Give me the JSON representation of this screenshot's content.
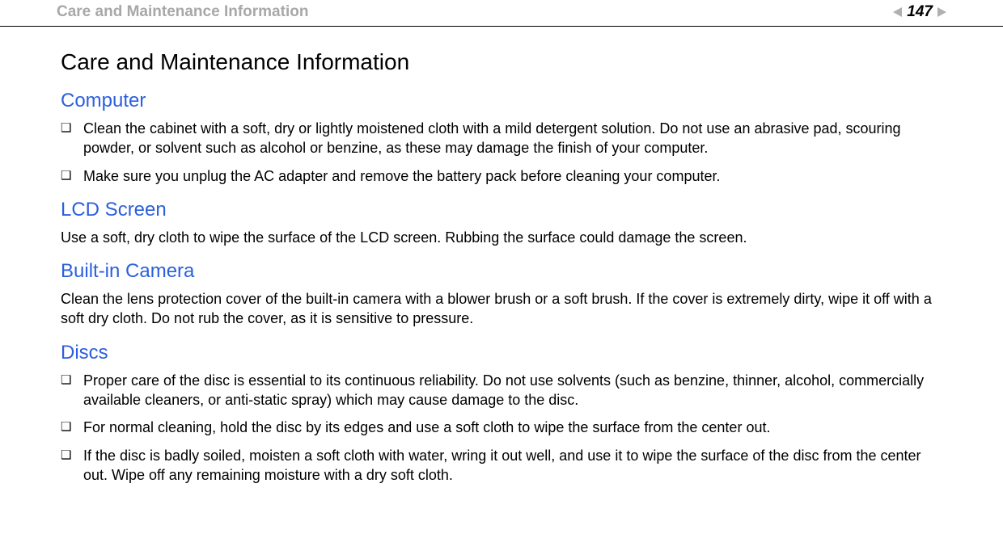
{
  "header": {
    "breadcrumb": "Care and Maintenance Information",
    "page_number": "147"
  },
  "main_title": "Care and Maintenance Information",
  "sections": {
    "computer": {
      "heading": "Computer",
      "items": [
        "Clean the cabinet with a soft, dry or lightly moistened cloth with a mild detergent solution. Do not use an abrasive pad, scouring powder, or solvent such as alcohol or benzine, as these may damage the finish of your computer.",
        "Make sure you unplug the AC adapter and remove the battery pack before cleaning your computer."
      ]
    },
    "lcd": {
      "heading": "LCD Screen",
      "body": "Use a soft, dry cloth to wipe the surface of the LCD screen. Rubbing the surface could damage the screen."
    },
    "camera": {
      "heading": "Built-in Camera",
      "body": "Clean the lens protection cover of the built-in camera with a blower brush or a soft brush. If the cover is extremely dirty, wipe it off with a soft dry cloth. Do not rub the cover, as it is sensitive to pressure."
    },
    "discs": {
      "heading": "Discs",
      "items": [
        "Proper care of the disc is essential to its continuous reliability. Do not use solvents (such as benzine, thinner, alcohol, commercially available cleaners, or anti-static spray) which may cause damage to the disc.",
        "For normal cleaning, hold the disc by its edges and use a soft cloth to wipe the surface from the center out.",
        "If the disc is badly soiled, moisten a soft cloth with water, wring it out well, and use it to wipe the surface of the disc from the center out. Wipe off any remaining moisture with a dry soft cloth."
      ]
    }
  }
}
